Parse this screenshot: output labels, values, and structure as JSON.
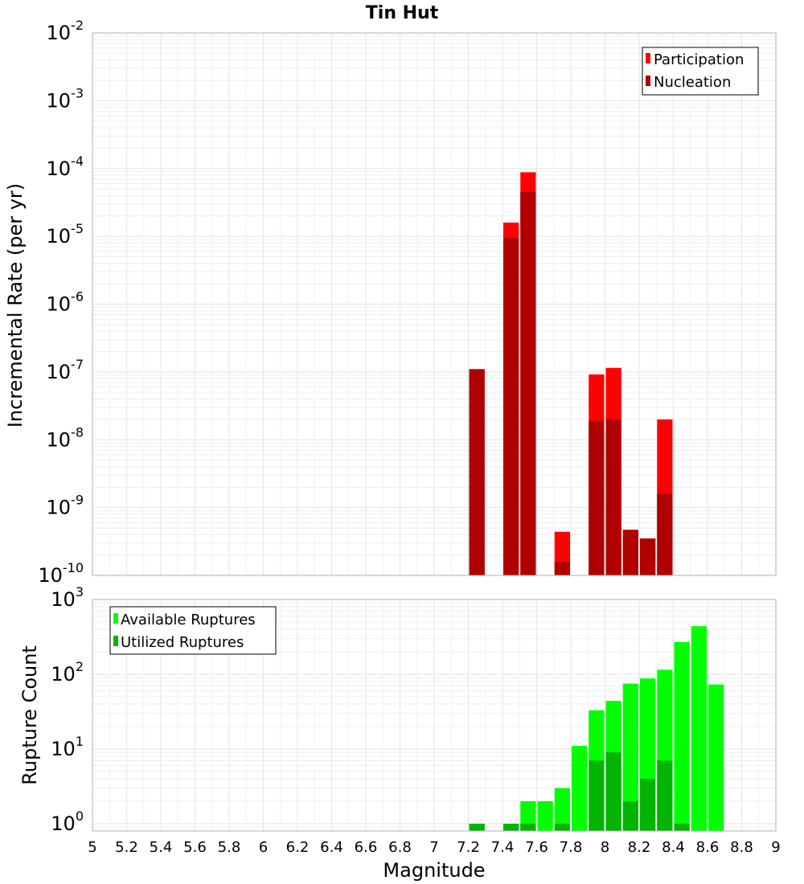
{
  "chart_data": [
    {
      "type": "bar",
      "title": "Tin Hut",
      "xlabel": "",
      "ylabel": "Incremental Rate (per yr)",
      "yscale": "log",
      "ylim": [
        1e-10,
        0.01
      ],
      "xlim": [
        5,
        9
      ],
      "bar_width": 0.1,
      "grid": true,
      "legend_position": "top-right",
      "yticks": [
        {
          "base": "10",
          "exp": "-2",
          "value": 0.01
        },
        {
          "base": "10",
          "exp": "-3",
          "value": 0.001
        },
        {
          "base": "10",
          "exp": "-4",
          "value": 0.0001
        },
        {
          "base": "10",
          "exp": "-5",
          "value": 1e-05
        },
        {
          "base": "10",
          "exp": "-6",
          "value": 1e-06
        },
        {
          "base": "10",
          "exp": "-7",
          "value": 1e-07
        },
        {
          "base": "10",
          "exp": "-8",
          "value": 1e-08
        },
        {
          "base": "10",
          "exp": "-9",
          "value": 1e-09
        },
        {
          "base": "10",
          "exp": "-10",
          "value": 1e-10
        }
      ],
      "series": [
        {
          "name": "Participation",
          "color": "#ff0000",
          "x": [
            7.25,
            7.45,
            7.55,
            7.75,
            7.95,
            8.05,
            8.15,
            8.25,
            8.35
          ],
          "values": [
            1.1e-07,
            1.6e-05,
            8.8e-05,
            4.4e-10,
            9.2e-08,
            1.15e-07,
            4.7e-10,
            3.5e-10,
            2e-08
          ]
        },
        {
          "name": "Nucleation",
          "color": "#b00000",
          "x": [
            7.25,
            7.45,
            7.55,
            7.75,
            7.95,
            8.05,
            8.15,
            8.25,
            8.35
          ],
          "values": [
            1.1e-07,
            9.5e-06,
            4.5e-05,
            1.6e-10,
            1.9e-08,
            2e-08,
            4.7e-10,
            3.5e-10,
            1.6e-09
          ]
        }
      ]
    },
    {
      "type": "bar",
      "title": "",
      "xlabel": "Magnitude",
      "ylabel": "Rupture Count",
      "yscale": "log",
      "ylim": [
        0.8,
        1000
      ],
      "xlim": [
        5,
        9
      ],
      "bar_width": 0.1,
      "grid": true,
      "legend_position": "top-left",
      "yticks": [
        {
          "base": "10",
          "exp": "3",
          "value": 1000
        },
        {
          "base": "10",
          "exp": "2",
          "value": 100
        },
        {
          "base": "10",
          "exp": "1",
          "value": 10
        },
        {
          "base": "10",
          "exp": "0",
          "value": 1
        }
      ],
      "xticks": [
        "5",
        "5.2",
        "5.4",
        "5.6",
        "5.8",
        "6",
        "6.2",
        "6.4",
        "6.6",
        "6.8",
        "7",
        "7.2",
        "7.4",
        "7.6",
        "7.8",
        "8",
        "8.2",
        "8.4",
        "8.6",
        "8.8",
        "9"
      ],
      "series": [
        {
          "name": "Available Ruptures",
          "color": "#00ff00",
          "x": [
            7.25,
            7.45,
            7.55,
            7.65,
            7.75,
            7.85,
            7.95,
            8.05,
            8.15,
            8.25,
            8.35,
            8.45,
            8.55,
            8.65
          ],
          "values": [
            1,
            1,
            2,
            2,
            3,
            11,
            33,
            44,
            75,
            88,
            115,
            270,
            440,
            73
          ]
        },
        {
          "name": "Utilized Ruptures",
          "color": "#00b400",
          "x": [
            7.25,
            7.45,
            7.55,
            7.75,
            7.95,
            8.05,
            8.15,
            8.25,
            8.35,
            8.45
          ],
          "values": [
            1,
            1,
            1,
            1,
            7,
            9,
            2,
            4,
            7,
            1
          ]
        }
      ]
    }
  ]
}
